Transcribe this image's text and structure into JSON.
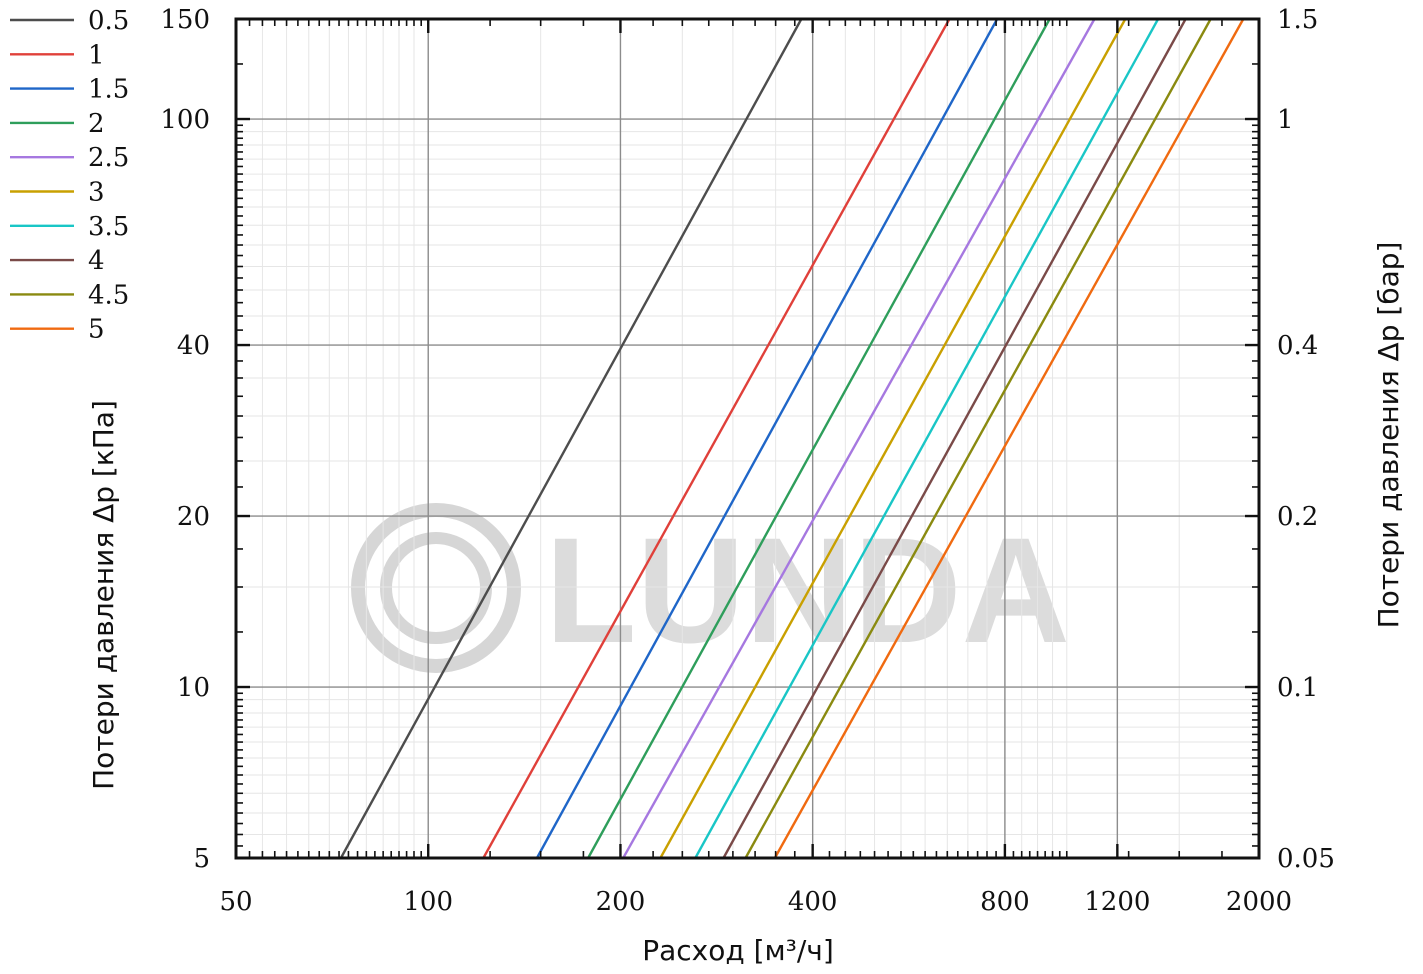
{
  "chart_data": {
    "type": "line",
    "watermark": "LUNDA",
    "xlabel": "Расход [м³/ч]",
    "ylabel": "Потери давления Δp [кПа]",
    "ylabel_right": "Потери давления Δp [бар]",
    "x_scale": "log",
    "y_scale": "log",
    "xlim": [
      50,
      2000
    ],
    "ylim": [
      5,
      150
    ],
    "x_ticks": [
      {
        "value": 50,
        "label": "50"
      },
      {
        "value": 100,
        "label": "100"
      },
      {
        "value": 200,
        "label": "200"
      },
      {
        "value": 400,
        "label": "400"
      },
      {
        "value": 800,
        "label": "800"
      },
      {
        "value": 1200,
        "label": "1200"
      },
      {
        "value": 2000,
        "label": "2000"
      }
    ],
    "y_ticks": [
      {
        "value": 5,
        "label": "5"
      },
      {
        "value": 10,
        "label": "10"
      },
      {
        "value": 20,
        "label": "20"
      },
      {
        "value": 40,
        "label": "40"
      },
      {
        "value": 100,
        "label": "100"
      },
      {
        "value": 150,
        "label": "150"
      }
    ],
    "y_ticks_right": [
      {
        "value": 5,
        "label": "0.05"
      },
      {
        "value": 10,
        "label": "0.1"
      },
      {
        "value": 20,
        "label": "0.2"
      },
      {
        "value": 40,
        "label": "0.4"
      },
      {
        "value": 100,
        "label": "1"
      },
      {
        "value": 150,
        "label": "1.5"
      }
    ],
    "grid": true,
    "legend_position": "outside-top-left",
    "series": [
      {
        "name": "0.5",
        "color": "#4d4d4d",
        "x": [
          73,
          384
        ],
        "y": [
          5,
          150
        ]
      },
      {
        "name": "1",
        "color": "#e0403a",
        "x": [
          122,
          655
        ],
        "y": [
          5,
          150
        ]
      },
      {
        "name": "1.5",
        "color": "#1f66c8",
        "x": [
          148,
          778
        ],
        "y": [
          5,
          150
        ]
      },
      {
        "name": "2",
        "color": "#2e9e5b",
        "x": [
          178,
          940
        ],
        "y": [
          5,
          150
        ]
      },
      {
        "name": "2.5",
        "color": "#a678e0",
        "x": [
          202,
          1105
        ],
        "y": [
          5,
          150
        ]
      },
      {
        "name": "3",
        "color": "#c9a000",
        "x": [
          231,
          1235
        ],
        "y": [
          5,
          150
        ]
      },
      {
        "name": "3.5",
        "color": "#19c6c6",
        "x": [
          262,
          1390
        ],
        "y": [
          5,
          150
        ]
      },
      {
        "name": "4",
        "color": "#7a4a48",
        "x": [
          290,
          1535
        ],
        "y": [
          5,
          150
        ]
      },
      {
        "name": "4.5",
        "color": "#8a8a10",
        "x": [
          314,
          1680
        ],
        "y": [
          5,
          150
        ]
      },
      {
        "name": "5",
        "color": "#f06a10",
        "x": [
          349,
          1890
        ],
        "y": [
          5,
          150
        ]
      }
    ]
  }
}
